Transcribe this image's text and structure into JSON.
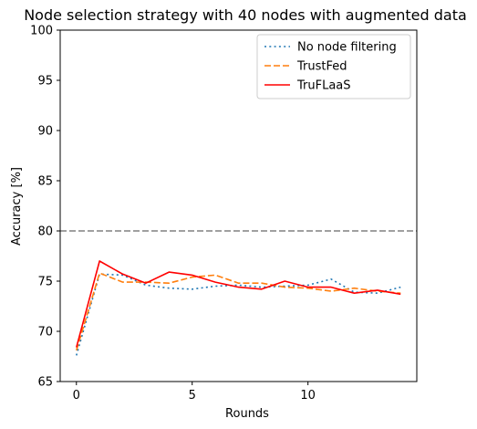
{
  "chart_data": {
    "type": "line",
    "title": "Node selection strategy with 40 nodes with augmented data",
    "xlabel": "Rounds",
    "ylabel": "Accuracy [%]",
    "xlim": [
      -0.7,
      14.7
    ],
    "ylim": [
      65,
      100
    ],
    "xticks": [
      0,
      5,
      10
    ],
    "yticks": [
      65,
      70,
      75,
      80,
      85,
      90,
      95,
      100
    ],
    "grid": false,
    "legend_position": "top-right",
    "reference_line": {
      "y": 80,
      "color": "#808080",
      "style": "dashed"
    },
    "x": [
      0,
      1,
      2,
      3,
      4,
      5,
      6,
      7,
      8,
      9,
      10,
      11,
      12,
      13,
      14
    ],
    "series": [
      {
        "name": "No node filtering",
        "color": "#1f77b4",
        "style": "dotted",
        "values": [
          67.6,
          75.7,
          75.6,
          74.6,
          74.3,
          74.2,
          74.5,
          74.6,
          74.4,
          74.5,
          74.6,
          75.2,
          73.9,
          73.8,
          74.4
        ]
      },
      {
        "name": "TrustFed",
        "color": "#ff7f0e",
        "style": "dashed",
        "values": [
          68.1,
          75.8,
          74.9,
          74.9,
          74.8,
          75.4,
          75.6,
          74.8,
          74.8,
          74.4,
          74.3,
          74.0,
          74.3,
          74.0,
          73.8
        ]
      },
      {
        "name": "TruFLaaS",
        "color": "#ff0000",
        "style": "solid",
        "values": [
          68.4,
          77.0,
          75.7,
          74.8,
          75.9,
          75.6,
          74.9,
          74.4,
          74.2,
          75.0,
          74.4,
          74.4,
          73.8,
          74.1,
          73.7
        ]
      }
    ]
  }
}
